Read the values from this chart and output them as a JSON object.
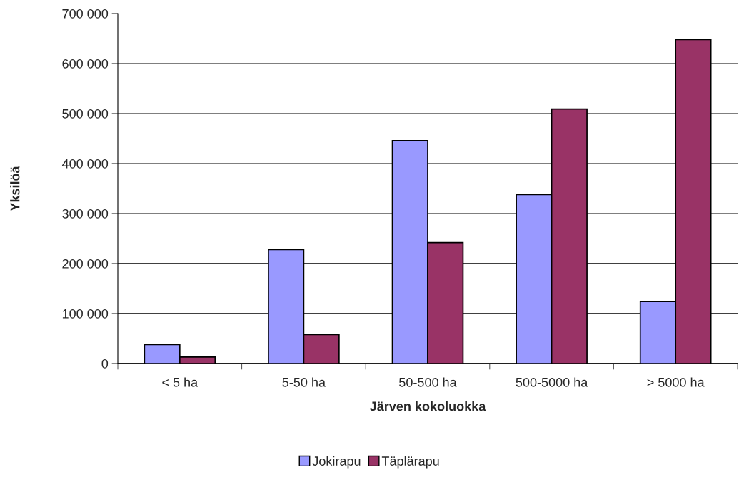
{
  "chart_data": {
    "type": "bar",
    "xlabel": "Järven kokoluokka",
    "ylabel": "Yksilöä",
    "categories": [
      "< 5 ha",
      "5-50 ha",
      "50-500 ha",
      "500-5000 ha",
      "> 5000 ha"
    ],
    "series": [
      {
        "name": "Jokirapu",
        "color": "#9999ff",
        "values": [
          38000,
          228000,
          446000,
          338000,
          124000
        ]
      },
      {
        "name": "Täplärapu",
        "color": "#993366",
        "values": [
          13000,
          58000,
          242000,
          509000,
          648000
        ]
      }
    ],
    "ylim": [
      0,
      700000
    ],
    "yticks": [
      {
        "value": 0,
        "label": "0"
      },
      {
        "value": 100000,
        "label": "100 000"
      },
      {
        "value": 200000,
        "label": "200 000"
      },
      {
        "value": 300000,
        "label": "300 000"
      },
      {
        "value": 400000,
        "label": "400 000"
      },
      {
        "value": 500000,
        "label": "500 000"
      },
      {
        "value": 600000,
        "label": "600 000"
      },
      {
        "value": 700000,
        "label": "700 000"
      }
    ],
    "grid": "y",
    "legend": "bottom"
  }
}
